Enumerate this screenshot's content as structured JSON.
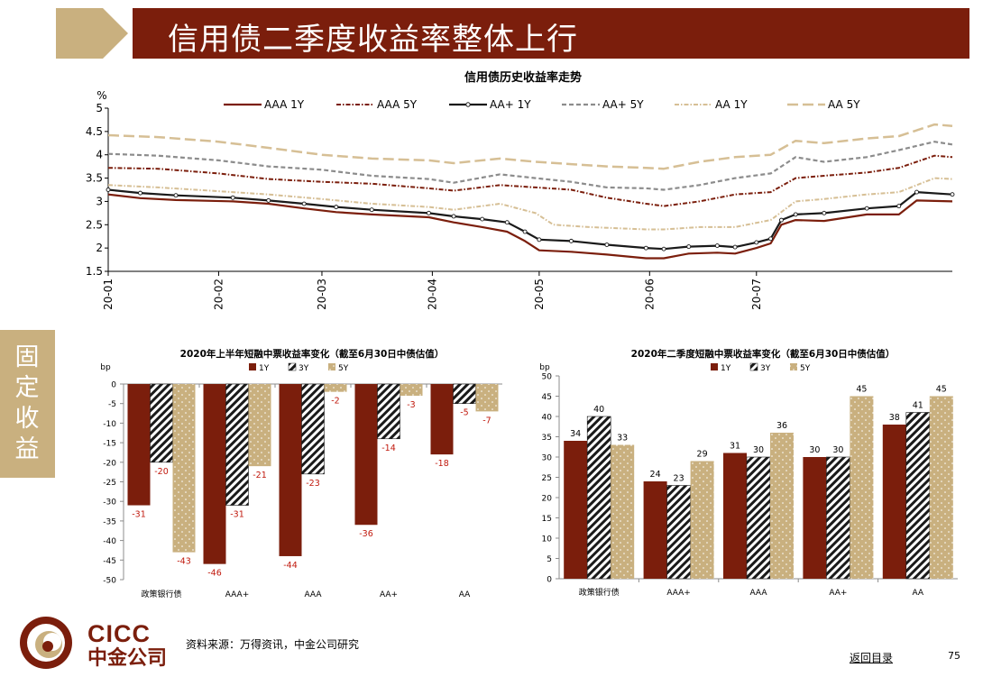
{
  "header": {
    "title": "信用债二季度收益率整体上行"
  },
  "side_tab": {
    "label": "固定收益"
  },
  "footer": {
    "source": "资料来源：万得资讯，中金公司研究",
    "back_link": "返回目录",
    "page_number": "75"
  },
  "logo": {
    "brand_en": "CICC",
    "brand_cn": "中金公司"
  },
  "colors": {
    "brand": "#7b1e0c",
    "gold": "#c9b07f",
    "grey": "#8c8c8c"
  },
  "chart_data": [
    {
      "type": "line",
      "title": "信用债历史收益率走势",
      "ylabel": "%",
      "ylim": [
        1.5,
        5
      ],
      "yticks": [
        "1.5",
        "2",
        "2.5",
        "3",
        "3.5",
        "4",
        "4.5",
        "5"
      ],
      "xticks": [
        "20-01",
        "20-02",
        "20-03",
        "20-04",
        "20-05",
        "20-06",
        "20-07"
      ],
      "legend_position": "top",
      "series": [
        {
          "name": "AAA 1Y",
          "color": "#7b1e0c",
          "style": "solid",
          "points": [
            [
              "2020-01-01",
              3.15
            ],
            [
              "2020-01-10",
              3.07
            ],
            [
              "2020-01-20",
              3.03
            ],
            [
              "2020-02-05",
              3.0
            ],
            [
              "2020-02-15",
              2.95
            ],
            [
              "2020-02-25",
              2.85
            ],
            [
              "2020-03-05",
              2.77
            ],
            [
              "2020-03-15",
              2.72
            ],
            [
              "2020-03-31",
              2.66
            ],
            [
              "2020-04-07",
              2.55
            ],
            [
              "2020-04-15",
              2.45
            ],
            [
              "2020-04-22",
              2.35
            ],
            [
              "2020-04-27",
              2.15
            ],
            [
              "2020-05-01",
              1.95
            ],
            [
              "2020-05-10",
              1.92
            ],
            [
              "2020-05-20",
              1.86
            ],
            [
              "2020-05-31",
              1.78
            ],
            [
              "2020-06-05",
              1.78
            ],
            [
              "2020-06-12",
              1.88
            ],
            [
              "2020-06-20",
              1.9
            ],
            [
              "2020-06-25",
              1.88
            ],
            [
              "2020-07-01",
              2.0
            ],
            [
              "2020-07-05",
              2.1
            ],
            [
              "2020-07-08",
              2.5
            ],
            [
              "2020-07-12",
              2.6
            ],
            [
              "2020-07-20",
              2.58
            ],
            [
              "2020-08-01",
              2.72
            ],
            [
              "2020-08-10",
              2.72
            ],
            [
              "2020-08-15",
              3.02
            ],
            [
              "2020-08-25",
              3.0
            ]
          ]
        },
        {
          "name": "AAA 5Y",
          "color": "#7b1e0c",
          "style": "dash-dot",
          "points": [
            [
              "2020-01-01",
              3.72
            ],
            [
              "2020-01-15",
              3.7
            ],
            [
              "2020-02-01",
              3.6
            ],
            [
              "2020-02-15",
              3.48
            ],
            [
              "2020-03-01",
              3.42
            ],
            [
              "2020-03-15",
              3.38
            ],
            [
              "2020-03-31",
              3.28
            ],
            [
              "2020-04-07",
              3.23
            ],
            [
              "2020-04-20",
              3.35
            ],
            [
              "2020-04-30",
              3.3
            ],
            [
              "2020-05-10",
              3.25
            ],
            [
              "2020-05-20",
              3.08
            ],
            [
              "2020-05-31",
              2.95
            ],
            [
              "2020-06-05",
              2.9
            ],
            [
              "2020-06-15",
              3.0
            ],
            [
              "2020-06-25",
              3.15
            ],
            [
              "2020-07-05",
              3.2
            ],
            [
              "2020-07-12",
              3.5
            ],
            [
              "2020-07-20",
              3.55
            ],
            [
              "2020-08-01",
              3.62
            ],
            [
              "2020-08-10",
              3.72
            ],
            [
              "2020-08-20",
              3.98
            ],
            [
              "2020-08-25",
              3.95
            ]
          ]
        },
        {
          "name": "AA+ 1Y",
          "color": "#1a1a1a",
          "style": "marker",
          "points": [
            [
              "2020-01-01",
              3.25
            ],
            [
              "2020-01-10",
              3.18
            ],
            [
              "2020-01-20",
              3.13
            ],
            [
              "2020-02-05",
              3.08
            ],
            [
              "2020-02-15",
              3.02
            ],
            [
              "2020-02-25",
              2.95
            ],
            [
              "2020-03-05",
              2.88
            ],
            [
              "2020-03-15",
              2.82
            ],
            [
              "2020-03-31",
              2.75
            ],
            [
              "2020-04-07",
              2.68
            ],
            [
              "2020-04-15",
              2.62
            ],
            [
              "2020-04-22",
              2.55
            ],
            [
              "2020-04-27",
              2.35
            ],
            [
              "2020-05-01",
              2.18
            ],
            [
              "2020-05-10",
              2.15
            ],
            [
              "2020-05-20",
              2.07
            ],
            [
              "2020-05-31",
              2.0
            ],
            [
              "2020-06-05",
              1.98
            ],
            [
              "2020-06-12",
              2.03
            ],
            [
              "2020-06-20",
              2.05
            ],
            [
              "2020-06-25",
              2.02
            ],
            [
              "2020-07-01",
              2.12
            ],
            [
              "2020-07-05",
              2.2
            ],
            [
              "2020-07-08",
              2.6
            ],
            [
              "2020-07-12",
              2.72
            ],
            [
              "2020-07-20",
              2.75
            ],
            [
              "2020-08-01",
              2.85
            ],
            [
              "2020-08-10",
              2.9
            ],
            [
              "2020-08-15",
              3.2
            ],
            [
              "2020-08-25",
              3.15
            ]
          ]
        },
        {
          "name": "AA+ 5Y",
          "color": "#8c8c8c",
          "style": "dashed",
          "points": [
            [
              "2020-01-01",
              4.02
            ],
            [
              "2020-01-15",
              3.98
            ],
            [
              "2020-02-01",
              3.88
            ],
            [
              "2020-02-15",
              3.75
            ],
            [
              "2020-03-01",
              3.68
            ],
            [
              "2020-03-15",
              3.55
            ],
            [
              "2020-03-31",
              3.48
            ],
            [
              "2020-04-07",
              3.4
            ],
            [
              "2020-04-20",
              3.58
            ],
            [
              "2020-04-30",
              3.5
            ],
            [
              "2020-05-10",
              3.42
            ],
            [
              "2020-05-20",
              3.3
            ],
            [
              "2020-05-31",
              3.28
            ],
            [
              "2020-06-05",
              3.25
            ],
            [
              "2020-06-15",
              3.35
            ],
            [
              "2020-06-25",
              3.5
            ],
            [
              "2020-07-05",
              3.6
            ],
            [
              "2020-07-12",
              3.95
            ],
            [
              "2020-07-20",
              3.85
            ],
            [
              "2020-08-01",
              3.95
            ],
            [
              "2020-08-10",
              4.1
            ],
            [
              "2020-08-20",
              4.28
            ],
            [
              "2020-08-25",
              4.22
            ]
          ]
        },
        {
          "name": "AA 1Y",
          "color": "#d6bf95",
          "style": "dash-dot",
          "points": [
            [
              "2020-01-01",
              3.35
            ],
            [
              "2020-01-15",
              3.3
            ],
            [
              "2020-02-01",
              3.22
            ],
            [
              "2020-02-15",
              3.15
            ],
            [
              "2020-03-01",
              3.05
            ],
            [
              "2020-03-15",
              2.95
            ],
            [
              "2020-03-31",
              2.88
            ],
            [
              "2020-04-07",
              2.82
            ],
            [
              "2020-04-20",
              2.95
            ],
            [
              "2020-04-30",
              2.75
            ],
            [
              "2020-05-05",
              2.5
            ],
            [
              "2020-05-15",
              2.45
            ],
            [
              "2020-05-31",
              2.4
            ],
            [
              "2020-06-05",
              2.4
            ],
            [
              "2020-06-15",
              2.45
            ],
            [
              "2020-06-25",
              2.45
            ],
            [
              "2020-07-05",
              2.6
            ],
            [
              "2020-07-12",
              3.0
            ],
            [
              "2020-07-20",
              3.05
            ],
            [
              "2020-08-01",
              3.15
            ],
            [
              "2020-08-10",
              3.2
            ],
            [
              "2020-08-20",
              3.5
            ],
            [
              "2020-08-25",
              3.48
            ]
          ]
        },
        {
          "name": "AA 5Y",
          "color": "#d6bf95",
          "style": "long-dash",
          "points": [
            [
              "2020-01-01",
              4.42
            ],
            [
              "2020-01-15",
              4.38
            ],
            [
              "2020-02-01",
              4.28
            ],
            [
              "2020-02-15",
              4.15
            ],
            [
              "2020-03-01",
              4.0
            ],
            [
              "2020-03-15",
              3.92
            ],
            [
              "2020-03-31",
              3.88
            ],
            [
              "2020-04-07",
              3.82
            ],
            [
              "2020-04-20",
              3.92
            ],
            [
              "2020-04-30",
              3.85
            ],
            [
              "2020-05-10",
              3.8
            ],
            [
              "2020-05-20",
              3.75
            ],
            [
              "2020-05-31",
              3.72
            ],
            [
              "2020-06-05",
              3.7
            ],
            [
              "2020-06-15",
              3.85
            ],
            [
              "2020-06-25",
              3.95
            ],
            [
              "2020-07-05",
              4.0
            ],
            [
              "2020-07-12",
              4.3
            ],
            [
              "2020-07-20",
              4.25
            ],
            [
              "2020-08-01",
              4.35
            ],
            [
              "2020-08-10",
              4.4
            ],
            [
              "2020-08-20",
              4.65
            ],
            [
              "2020-08-25",
              4.62
            ]
          ]
        }
      ]
    },
    {
      "type": "bar",
      "title": "2020年上半年短融中票收益率变化（截至6月30日中债估值）",
      "ylabel": "bp",
      "ylim": [
        -50,
        0
      ],
      "yticks": [
        "0",
        "-5",
        "-10",
        "-15",
        "-20",
        "-25",
        "-30",
        "-35",
        "-40",
        "-45",
        "-50"
      ],
      "categories": [
        "政策银行债",
        "AAA+",
        "AAA",
        "AA+",
        "AA"
      ],
      "series": [
        {
          "name": "1Y",
          "values": [
            -31,
            -46,
            -44,
            -36,
            -18
          ]
        },
        {
          "name": "3Y",
          "values": [
            -20,
            -31,
            -23,
            -14,
            -5
          ]
        },
        {
          "name": "5Y",
          "values": [
            -43,
            -21,
            -2,
            -3,
            -7
          ]
        }
      ]
    },
    {
      "type": "bar",
      "title": "2020年二季度短融中票收益率变化（截至6月30日中债估值）",
      "ylabel": "bp",
      "ylim": [
        0,
        50
      ],
      "yticks": [
        "0",
        "5",
        "10",
        "15",
        "20",
        "25",
        "30",
        "35",
        "40",
        "45",
        "50"
      ],
      "categories": [
        "政策银行债",
        "AAA+",
        "AAA",
        "AA+",
        "AA"
      ],
      "series": [
        {
          "name": "1Y",
          "values": [
            34,
            24,
            31,
            30,
            38
          ]
        },
        {
          "name": "3Y",
          "values": [
            40,
            23,
            30,
            30,
            41
          ]
        },
        {
          "name": "5Y",
          "values": [
            33,
            29,
            36,
            45,
            45
          ]
        }
      ]
    }
  ]
}
